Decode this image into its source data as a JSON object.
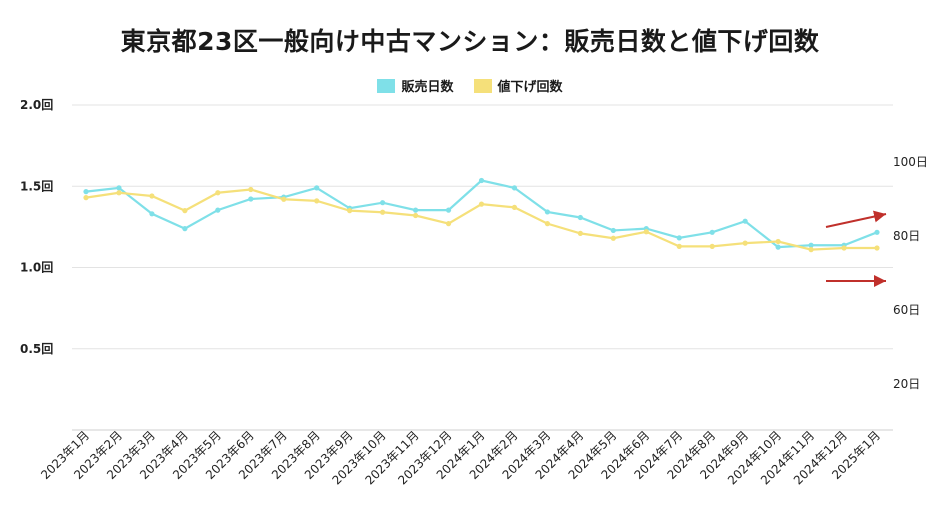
{
  "chart_data": {
    "type": "line",
    "title": "東京都23区一般向け中古マンション：販売日数と値下げ回数",
    "categories": [
      "2023年1月",
      "2023年2月",
      "2023年3月",
      "2023年4月",
      "2023年5月",
      "2023年6月",
      "2023年7月",
      "2023年8月",
      "2023年9月",
      "2023年10月",
      "2023年11月",
      "2023年12月",
      "2024年1月",
      "2024年2月",
      "2024年3月",
      "2024年4月",
      "2024年5月",
      "2024年6月",
      "2024年7月",
      "2024年8月",
      "2024年9月",
      "2024年10月",
      "2024年11月",
      "2024年12月",
      "2025年1月"
    ],
    "series": [
      {
        "name": "販売日数",
        "axis": "right",
        "color": "#7fe0e8",
        "values": [
          92,
          93,
          86,
          82,
          87,
          90,
          90.5,
          93,
          87.5,
          89,
          87,
          87,
          95,
          93,
          86.5,
          85,
          81.5,
          82,
          79.5,
          81,
          84,
          77,
          77.5,
          77.5,
          81
        ]
      },
      {
        "name": "値下げ回数",
        "axis": "left",
        "color": "#f5e07a",
        "values": [
          1.43,
          1.46,
          1.44,
          1.35,
          1.46,
          1.48,
          1.42,
          1.41,
          1.35,
          1.34,
          1.32,
          1.27,
          1.39,
          1.37,
          1.27,
          1.21,
          1.18,
          1.22,
          1.13,
          1.13,
          1.15,
          1.16,
          1.11,
          1.12,
          1.12
        ]
      }
    ],
    "y_left": {
      "ticks": [
        "2.0回",
        "1.5回",
        "1.0回",
        "0.5回"
      ],
      "tick_values": [
        2.0,
        1.5,
        1.0,
        0.5
      ],
      "range": [
        0,
        2.0
      ]
    },
    "y_right": {
      "ticks": [
        "100日",
        "80日",
        "60日",
        "20日"
      ],
      "tick_values": [
        100,
        80,
        60,
        20
      ],
      "range": [
        0,
        100
      ]
    },
    "grid": true,
    "legend_position": "top-center",
    "annotations": [
      {
        "type": "arrow",
        "color": "#c0302b",
        "direction": "up",
        "series": "販売日数"
      },
      {
        "type": "arrow",
        "color": "#c0302b",
        "direction": "flat",
        "series": "値下げ回数"
      }
    ]
  }
}
